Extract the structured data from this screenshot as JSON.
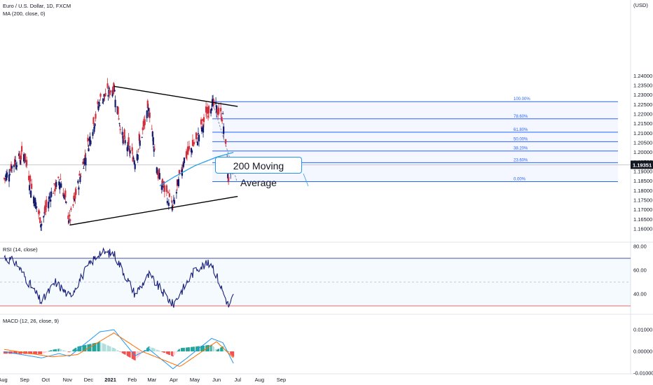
{
  "legends": {
    "main": "Euro / U.S. Dollar, 1D, FXCM",
    "ma": "MA (200, close, 0)",
    "rsi": "RSI (14, close)",
    "macd": "MACD (12, 26, close, 9)"
  },
  "annotation": "200 Moving Average",
  "currency_label": "(USD)",
  "last_price_label": "1.19351",
  "colors": {
    "up": "#131a6e",
    "down": "#d42f3c",
    "ma": "#29a0e8",
    "rsi": "#1a1f7a",
    "macd": "#2196f3",
    "signal": "#ff6d00",
    "hist_up": "#26a69a",
    "hist_down": "#ef5350",
    "fib": "#2962ff",
    "trendline": "#000000",
    "band": "#2196f3"
  },
  "chart_data": [
    {
      "type": "candlestick",
      "symbol": "EURUSD",
      "timeframe": "1D",
      "x_axis_labels": [
        "Aug",
        "Sep",
        "Oct",
        "Nov",
        "Dec",
        "2021",
        "Feb",
        "Mar",
        "Apr",
        "May",
        "Jun",
        "Jul",
        "Aug",
        "Sep"
      ],
      "y_axis_labels": [
        "1.24000",
        "1.23500",
        "1.23000",
        "1.22500",
        "1.22000",
        "1.21500",
        "1.21000",
        "1.20500",
        "1.20000",
        "1.19500",
        "1.19000",
        "1.18500",
        "1.18000",
        "1.17500",
        "1.17000",
        "1.16500",
        "1.16000"
      ],
      "ylim": [
        1.1575,
        1.2425
      ],
      "price_anchors": [
        {
          "date": "2020-08-01",
          "close": 1.185
        },
        {
          "date": "2020-08-18",
          "close": 1.195
        },
        {
          "date": "2020-09-01",
          "close": 1.199
        },
        {
          "date": "2020-09-10",
          "close": 1.182
        },
        {
          "date": "2020-09-25",
          "close": 1.163
        },
        {
          "date": "2020-10-08",
          "close": 1.178
        },
        {
          "date": "2020-10-22",
          "close": 1.186
        },
        {
          "date": "2020-11-04",
          "close": 1.164
        },
        {
          "date": "2020-11-18",
          "close": 1.186
        },
        {
          "date": "2020-12-01",
          "close": 1.205
        },
        {
          "date": "2020-12-17",
          "close": 1.227
        },
        {
          "date": "2021-01-06",
          "close": 1.234
        },
        {
          "date": "2021-01-18",
          "close": 1.208
        },
        {
          "date": "2021-02-05",
          "close": 1.196
        },
        {
          "date": "2021-02-25",
          "close": 1.223
        },
        {
          "date": "2021-03-10",
          "close": 1.188
        },
        {
          "date": "2021-03-31",
          "close": 1.171
        },
        {
          "date": "2021-04-15",
          "close": 1.196
        },
        {
          "date": "2021-05-03",
          "close": 1.206
        },
        {
          "date": "2021-05-25",
          "close": 1.226
        },
        {
          "date": "2021-06-10",
          "close": 1.218
        },
        {
          "date": "2021-06-18",
          "close": 1.186
        },
        {
          "date": "2021-06-25",
          "close": 1.1935
        }
      ],
      "ma_anchors": [
        {
          "date": "2021-01-01",
          "value": 1.16
        },
        {
          "date": "2021-02-01",
          "value": 1.17
        },
        {
          "date": "2021-03-01",
          "value": 1.18
        },
        {
          "date": "2021-04-01",
          "value": 1.187
        },
        {
          "date": "2021-05-01",
          "value": 1.193
        },
        {
          "date": "2021-06-01",
          "value": 1.1975
        },
        {
          "date": "2021-06-25",
          "value": 1.2
        }
      ],
      "trendlines": [
        {
          "name": "upper",
          "from": {
            "date": "2021-01-06",
            "price": 1.2345
          },
          "to": {
            "date": "2021-07-01",
            "price": 1.224
          }
        },
        {
          "name": "lower",
          "from": {
            "date": "2020-11-04",
            "price": 1.162
          },
          "to": {
            "date": "2021-07-01",
            "price": 1.177
          }
        }
      ],
      "fibonacci": {
        "high": 1.2265,
        "low": 1.1847,
        "levels": [
          {
            "label": "100.00%",
            "value": 1.2265
          },
          {
            "label": "78.60%",
            "value": 1.2175
          },
          {
            "label": "61.80%",
            "value": 1.2105
          },
          {
            "label": "50.00%",
            "value": 1.2056
          },
          {
            "label": "38.20%",
            "value": 1.2007
          },
          {
            "label": "23.60%",
            "value": 1.1946
          },
          {
            "label": "0.00%",
            "value": 1.1847
          }
        ]
      },
      "last_price": 1.19351
    },
    {
      "type": "line",
      "indicator": "RSI",
      "y_axis_labels": [
        "80.00",
        "60.00",
        "40.00"
      ],
      "ylim": [
        24,
        80
      ],
      "bands": {
        "upper": 70,
        "middle": 50,
        "lower": 30
      },
      "anchors": [
        {
          "date": "2020-08-01",
          "value": 72
        },
        {
          "date": "2020-08-20",
          "value": 66
        },
        {
          "date": "2020-09-25",
          "value": 33
        },
        {
          "date": "2020-10-15",
          "value": 50
        },
        {
          "date": "2020-11-04",
          "value": 38
        },
        {
          "date": "2020-12-01",
          "value": 64
        },
        {
          "date": "2020-12-17",
          "value": 75
        },
        {
          "date": "2021-01-06",
          "value": 74
        },
        {
          "date": "2021-02-05",
          "value": 40
        },
        {
          "date": "2021-02-25",
          "value": 56
        },
        {
          "date": "2021-03-31",
          "value": 31
        },
        {
          "date": "2021-05-03",
          "value": 62
        },
        {
          "date": "2021-05-25",
          "value": 66
        },
        {
          "date": "2021-06-18",
          "value": 30
        },
        {
          "date": "2021-06-25",
          "value": 38
        }
      ]
    },
    {
      "type": "line+bar",
      "indicator": "MACD",
      "y_axis_labels": [
        "0.01000",
        "0.00000",
        "-0.01000"
      ],
      "ylim": [
        -0.0112,
        0.0135
      ],
      "series": [
        {
          "name": "macd",
          "anchors": [
            {
              "date": "2020-08-01",
              "value": 0.0
            },
            {
              "date": "2020-09-25",
              "value": -0.003
            },
            {
              "date": "2020-10-20",
              "value": -0.001
            },
            {
              "date": "2020-11-04",
              "value": -0.0022
            },
            {
              "date": "2020-12-17",
              "value": 0.009
            },
            {
              "date": "2021-01-06",
              "value": 0.01
            },
            {
              "date": "2021-02-05",
              "value": -0.002
            },
            {
              "date": "2021-02-25",
              "value": 0.001
            },
            {
              "date": "2021-03-31",
              "value": -0.008
            },
            {
              "date": "2021-04-20",
              "value": -0.003
            },
            {
              "date": "2021-05-25",
              "value": 0.006
            },
            {
              "date": "2021-06-10",
              "value": 0.004
            },
            {
              "date": "2021-06-25",
              "value": -0.0055
            }
          ]
        },
        {
          "name": "signal",
          "anchors": [
            {
              "date": "2020-08-01",
              "value": 0.001
            },
            {
              "date": "2020-10-10",
              "value": -0.0025
            },
            {
              "date": "2020-11-15",
              "value": -0.0015
            },
            {
              "date": "2021-01-06",
              "value": 0.0085
            },
            {
              "date": "2021-02-15",
              "value": 0.0
            },
            {
              "date": "2021-04-10",
              "value": -0.007
            },
            {
              "date": "2021-06-01",
              "value": 0.0045
            },
            {
              "date": "2021-06-25",
              "value": -0.003
            }
          ]
        }
      ]
    }
  ]
}
